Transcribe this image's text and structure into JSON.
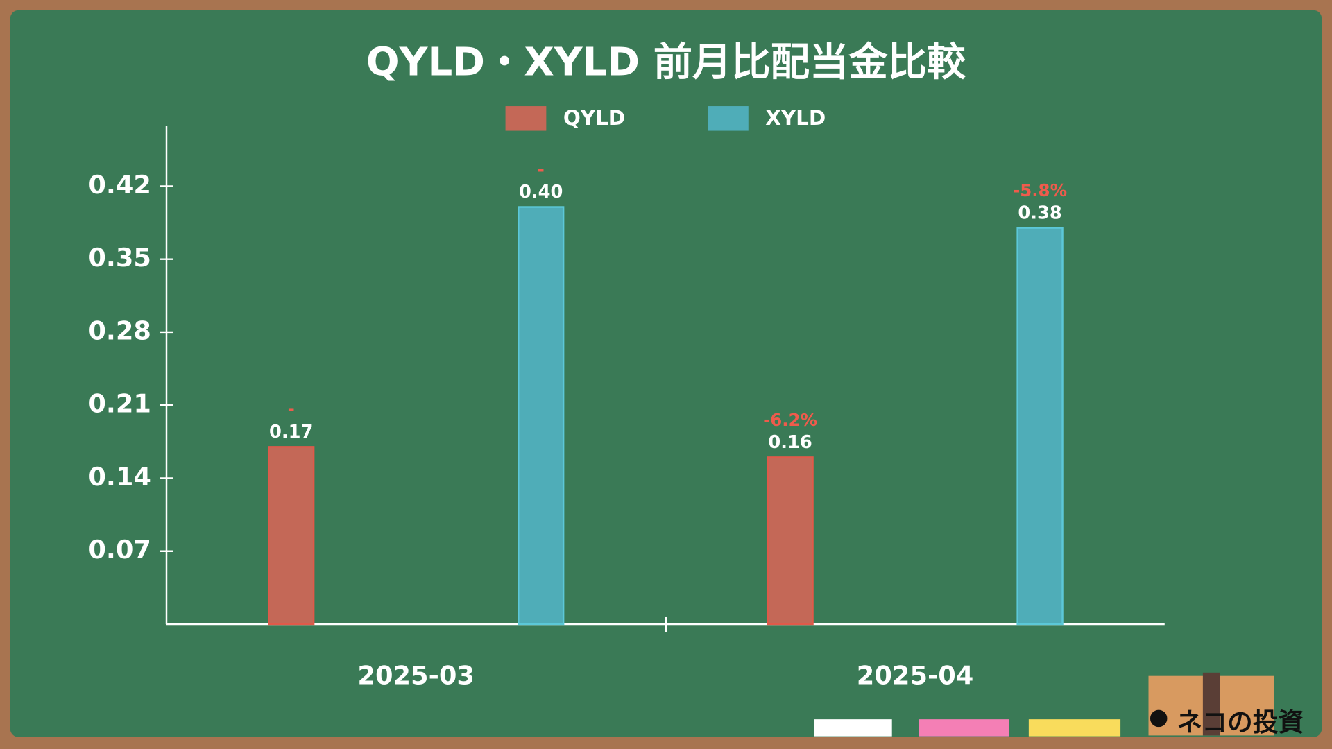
{
  "chart_data": {
    "type": "bar",
    "title": "QYLD・XYLD 前月比配当金比較",
    "categories": [
      "2025-03",
      "2025-04"
    ],
    "series": [
      {
        "name": "QYLD",
        "color": "#c46857",
        "values": [
          0.17,
          0.16
        ],
        "value_labels": [
          "0.17",
          "0.16"
        ],
        "change_labels": [
          "-",
          "-6.2%"
        ]
      },
      {
        "name": "XYLD",
        "color": "#4fadb8",
        "values": [
          0.4,
          0.38
        ],
        "value_labels": [
          "0.40",
          "0.38"
        ],
        "change_labels": [
          "-",
          "-5.8%"
        ]
      }
    ],
    "ylim": [
      0,
      0.478
    ],
    "yticks": [
      0.07,
      0.14,
      0.21,
      0.28,
      0.35,
      0.42
    ],
    "legend": "top"
  },
  "branding": "ネコの投資"
}
